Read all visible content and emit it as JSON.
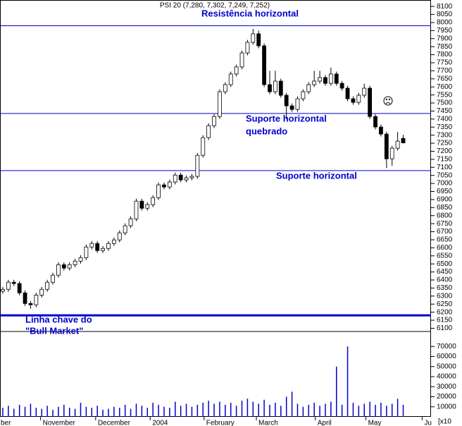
{
  "chart_data": {
    "type": "candlestick",
    "title": "PSI 20 (7,280, 7,302, 7,249, 7,252)",
    "open": [
      6330,
      6342,
      6386,
      6378,
      6320,
      6254,
      6246,
      6306,
      6342,
      6386,
      6430,
      6495,
      6474,
      6495,
      6517,
      6539,
      6605,
      6627,
      6583,
      6596,
      6627,
      6649,
      6693,
      6737,
      6780,
      6890,
      6846,
      6868,
      6912,
      6991,
      6978,
      7009,
      7052,
      7022,
      7035,
      7044,
      7175,
      7285,
      7359,
      7416,
      7570,
      7614,
      7680,
      7724,
      7811,
      7877,
      7930,
      7855,
      7614,
      7570,
      7636,
      7548,
      7482,
      7460,
      7526,
      7570,
      7614,
      7636,
      7658,
      7622,
      7680,
      7622,
      7592,
      7526,
      7504,
      7548,
      7592,
      7416,
      7351,
      7307,
      7153,
      7219,
      7280
    ],
    "high": [
      6357,
      6401,
      6401,
      6393,
      6335,
      6269,
      6321,
      6357,
      6401,
      6445,
      6510,
      6510,
      6510,
      6532,
      6554,
      6620,
      6642,
      6642,
      6611,
      6642,
      6664,
      6708,
      6752,
      6795,
      6905,
      6905,
      6883,
      6927,
      7006,
      7006,
      7024,
      7067,
      7067,
      7050,
      7059,
      7190,
      7300,
      7374,
      7431,
      7585,
      7629,
      7695,
      7739,
      7826,
      7892,
      7960,
      7950,
      7870,
      7700,
      7700,
      7651,
      7563,
      7497,
      7541,
      7585,
      7629,
      7700,
      7700,
      7673,
      7720,
      7695,
      7637,
      7607,
      7541,
      7563,
      7620,
      7607,
      7431,
      7366,
      7322,
      7234,
      7320,
      7302
    ],
    "low": [
      6315,
      6327,
      6363,
      6305,
      6239,
      6221,
      6231,
      6291,
      6327,
      6371,
      6415,
      6459,
      6459,
      6480,
      6502,
      6524,
      6590,
      6568,
      6568,
      6581,
      6612,
      6634,
      6678,
      6722,
      6765,
      6831,
      6831,
      6853,
      6897,
      6963,
      6963,
      6994,
      7007,
      7007,
      7020,
      7029,
      7160,
      7270,
      7344,
      7401,
      7555,
      7599,
      7665,
      7709,
      7796,
      7862,
      7840,
      7599,
      7555,
      7555,
      7533,
      7400,
      7445,
      7445,
      7511,
      7555,
      7599,
      7621,
      7607,
      7607,
      7607,
      7577,
      7511,
      7489,
      7489,
      7533,
      7401,
      7336,
      7292,
      7095,
      7110,
      7204,
      7249
    ],
    "close": [
      6342,
      6386,
      6378,
      6320,
      6254,
      6246,
      6306,
      6342,
      6386,
      6430,
      6495,
      6474,
      6495,
      6517,
      6539,
      6605,
      6627,
      6583,
      6596,
      6627,
      6649,
      6693,
      6737,
      6780,
      6890,
      6846,
      6868,
      6912,
      6991,
      6978,
      7009,
      7052,
      7022,
      7035,
      7044,
      7175,
      7285,
      7359,
      7416,
      7570,
      7614,
      7680,
      7724,
      7811,
      7877,
      7930,
      7855,
      7614,
      7570,
      7636,
      7548,
      7482,
      7460,
      7526,
      7570,
      7614,
      7636,
      7658,
      7622,
      7680,
      7622,
      7592,
      7526,
      7504,
      7548,
      7592,
      7416,
      7351,
      7307,
      7153,
      7219,
      7263,
      7252
    ],
    "volume": [
      9000,
      11000,
      8000,
      12000,
      10000,
      13000,
      9000,
      8000,
      11000,
      7000,
      10000,
      12000,
      9000,
      8000,
      14000,
      10000,
      9000,
      11000,
      7000,
      8000,
      10000,
      9000,
      12000,
      8000,
      13000,
      11000,
      9000,
      14000,
      12000,
      10000,
      9000,
      15000,
      11000,
      13000,
      10000,
      12000,
      14000,
      16000,
      13000,
      15000,
      12000,
      14000,
      11000,
      16000,
      18000,
      15000,
      13000,
      17000,
      12000,
      14000,
      11000,
      20000,
      25000,
      13000,
      10000,
      12000,
      14000,
      11000,
      13000,
      15000,
      50000,
      12000,
      70000,
      14000,
      11000,
      13000,
      15000,
      12000,
      14000,
      11000,
      13000,
      18000,
      12000
    ],
    "xlim": [
      -0.5,
      77
    ],
    "xticks": [
      {
        "value": -2,
        "label": "ber"
      },
      {
        "value": 6.8,
        "label": "November"
      },
      {
        "value": 16.7,
        "label": "December"
      },
      {
        "value": 26.5,
        "label": "2004"
      },
      {
        "value": 36.2,
        "label": "February"
      },
      {
        "value": 45.6,
        "label": "March"
      },
      {
        "value": 56.2,
        "label": "April"
      },
      {
        "value": 65.3,
        "label": "May"
      },
      {
        "value": 75.4,
        "label": "Ju"
      }
    ],
    "ylim": [
      6080,
      8140
    ],
    "yticks": [
      6100,
      6150,
      6200,
      6250,
      6300,
      6350,
      6400,
      6450,
      6500,
      6550,
      6600,
      6650,
      6700,
      6750,
      6800,
      6850,
      6900,
      6950,
      7000,
      7050,
      7100,
      7150,
      7200,
      7250,
      7300,
      7350,
      7400,
      7450,
      7500,
      7550,
      7600,
      7650,
      7700,
      7750,
      7800,
      7850,
      7900,
      7950,
      8000,
      8050,
      8100
    ],
    "volume_ylim": [
      0,
      80000
    ],
    "volume_yticks": [
      10000,
      20000,
      30000,
      40000,
      50000,
      60000,
      70000
    ],
    "volume_unit": "[x10",
    "hlines": [
      7980,
      7435,
      7080,
      6180
    ],
    "annotations": [
      "Resistência horizontal",
      "Suporte horizontal",
      "quebrado",
      "Suporte horizontal",
      "Linha chave do",
      "\"Bull Market\""
    ],
    "color": "#000000",
    "line_color": "#0000cc"
  }
}
